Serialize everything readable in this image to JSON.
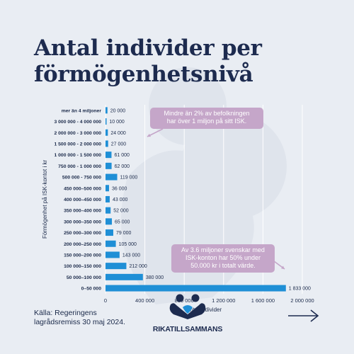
{
  "header": {
    "title": "Antal individer per förmögenhetsnivå"
  },
  "footer": {
    "source": "Källa: Regeringens lagrådsremiss 30 maj 2024.",
    "logo_text": "RIKATILLSAMMANS"
  },
  "colors": {
    "bar": "#1f8fd6",
    "background": "#e9edf3",
    "title": "#1d2b4f",
    "annotation": "#c5a6c9",
    "grid": "#ffffff"
  },
  "icons": {
    "logo": "two-figures-heart-icon",
    "next": "arrow-right-icon"
  },
  "chart_data": {
    "type": "bar",
    "orientation": "horizontal",
    "title": "",
    "xlabel": "Antal individer",
    "ylabel": "Förmögenhet på ISK-kontot i kr",
    "xlim": [
      0,
      2000000
    ],
    "xticks": [
      0,
      400000,
      800000,
      1200000,
      1600000,
      2000000
    ],
    "xtick_labels": [
      "0",
      "400 000",
      "800 000",
      "1 200 000",
      "1 600 000",
      "2 000 000"
    ],
    "grid": true,
    "categories": [
      "mer än 4 miljoner",
      "3 000 000 - 4 000 000",
      "2 000 000 - 3 000 000",
      "1 500 000 - 2 000 000",
      "1 000 000 - 1 500 000",
      "750 000 - 1 000 000",
      "500 000 - 750 000",
      "450 000–500 000",
      "400 000–450 000",
      "350 000–400 000",
      "300 000–350 000",
      "250 000–300 000",
      "200 000–250 000",
      "150 000–200 000",
      "100 000–150 000",
      "50 000–100 000",
      "0–50 000"
    ],
    "values": [
      20000,
      10000,
      24000,
      27000,
      61000,
      62000,
      119000,
      36000,
      43000,
      52000,
      65000,
      79000,
      105000,
      143000,
      212000,
      380000,
      1833000
    ],
    "value_labels": [
      "20 000",
      "10 000",
      "24 000",
      "27 000",
      "61 000",
      "62 000",
      "119 000",
      "36 000",
      "43 000",
      "52 000",
      "65 000",
      "79 000",
      "105 000",
      "143 000",
      "212 000",
      "380 000",
      "1 833 000"
    ],
    "annotations": [
      {
        "text_lines": [
          "Mindre än 2% av befolkningen",
          "har över 1 miljon på sitt ISK."
        ]
      },
      {
        "text_lines": [
          "Av 3.6 miljoner svenskar med",
          "ISK-konton har 50% under",
          "50.000 kr i totalt värde."
        ]
      }
    ]
  }
}
